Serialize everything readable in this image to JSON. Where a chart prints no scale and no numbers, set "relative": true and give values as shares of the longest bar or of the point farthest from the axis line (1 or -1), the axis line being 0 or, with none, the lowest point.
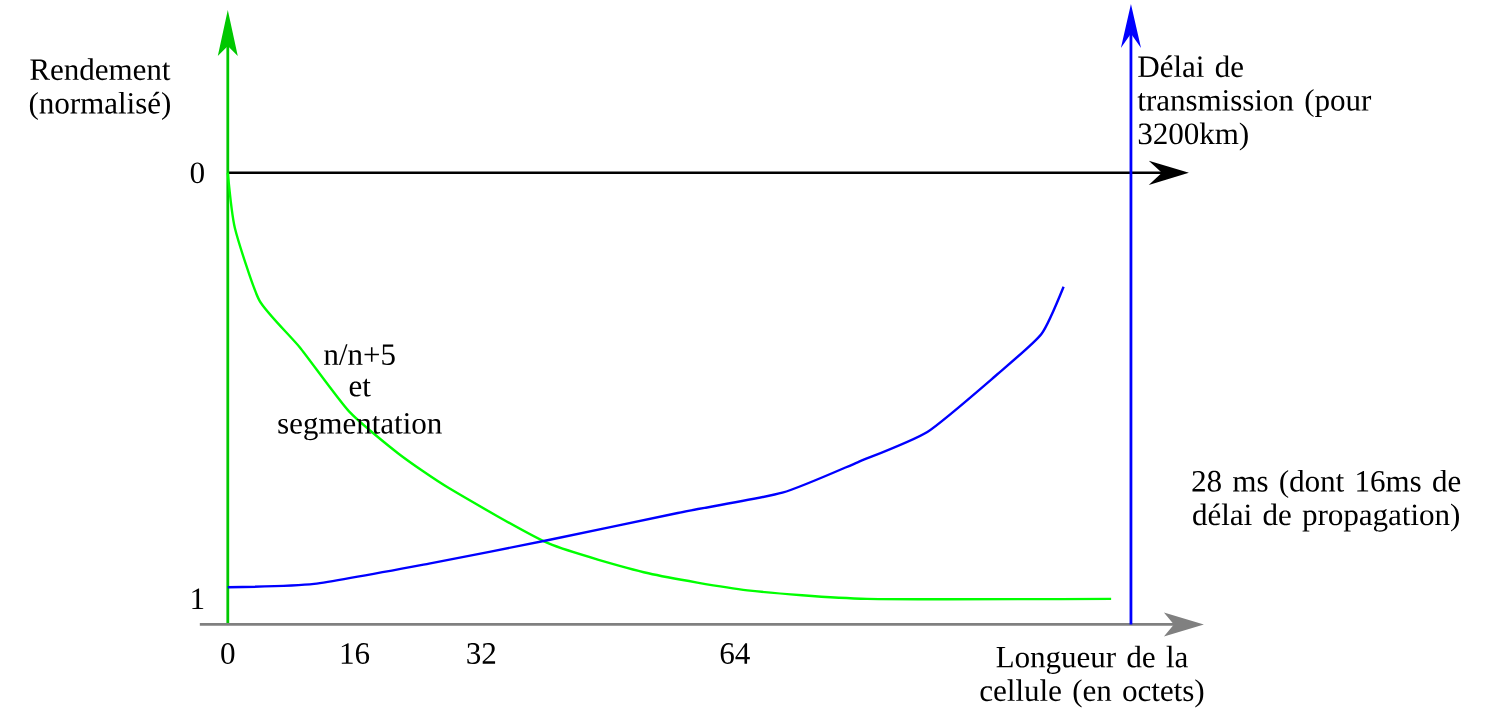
{
  "chart_data": [
    {
      "type": "line",
      "ylabel": "Rendement (normalisé)",
      "xlabel": "Longueur de la cellule (en octets)",
      "annotations": [
        "n/n+5",
        "et",
        "segmentation"
      ],
      "xlim": [
        0,
        114
      ],
      "xticks": [
        0,
        16,
        32,
        64
      ],
      "ylim": [
        1.06,
        0
      ],
      "yticks": [
        0,
        1
      ],
      "series": [
        {
          "color": "#00ff00",
          "x": [
            0,
            0.9,
            4.0,
            9.1,
            15.3,
            21.6,
            27.9,
            40.5,
            53.1,
            65.6,
            80.7,
            111.5
          ],
          "values": [
            0,
            0.13,
            0.3,
            0.41,
            0.56,
            0.66,
            0.74,
            0.87,
            0.94,
            0.98,
            1.0,
            1.0
          ]
        }
      ]
    },
    {
      "type": "line",
      "relative": true,
      "ylabel": "Délai de transmission (pour 3200km)",
      "annotations": [
        "28 ms (dont 16ms de délai de propagation)"
      ],
      "xlim": [
        0,
        114
      ],
      "series": [
        {
          "color": "#0000ff",
          "x": [
            0,
            10.9,
            25.4,
            40.5,
            56.8,
            70.0,
            79.5,
            88.3,
            97.1,
            102.7,
            105.5
          ],
          "values": [
            0.11,
            0.12,
            0.18,
            0.25,
            0.33,
            0.39,
            0.48,
            0.57,
            0.74,
            0.86,
            1.0
          ]
        }
      ]
    }
  ]
}
